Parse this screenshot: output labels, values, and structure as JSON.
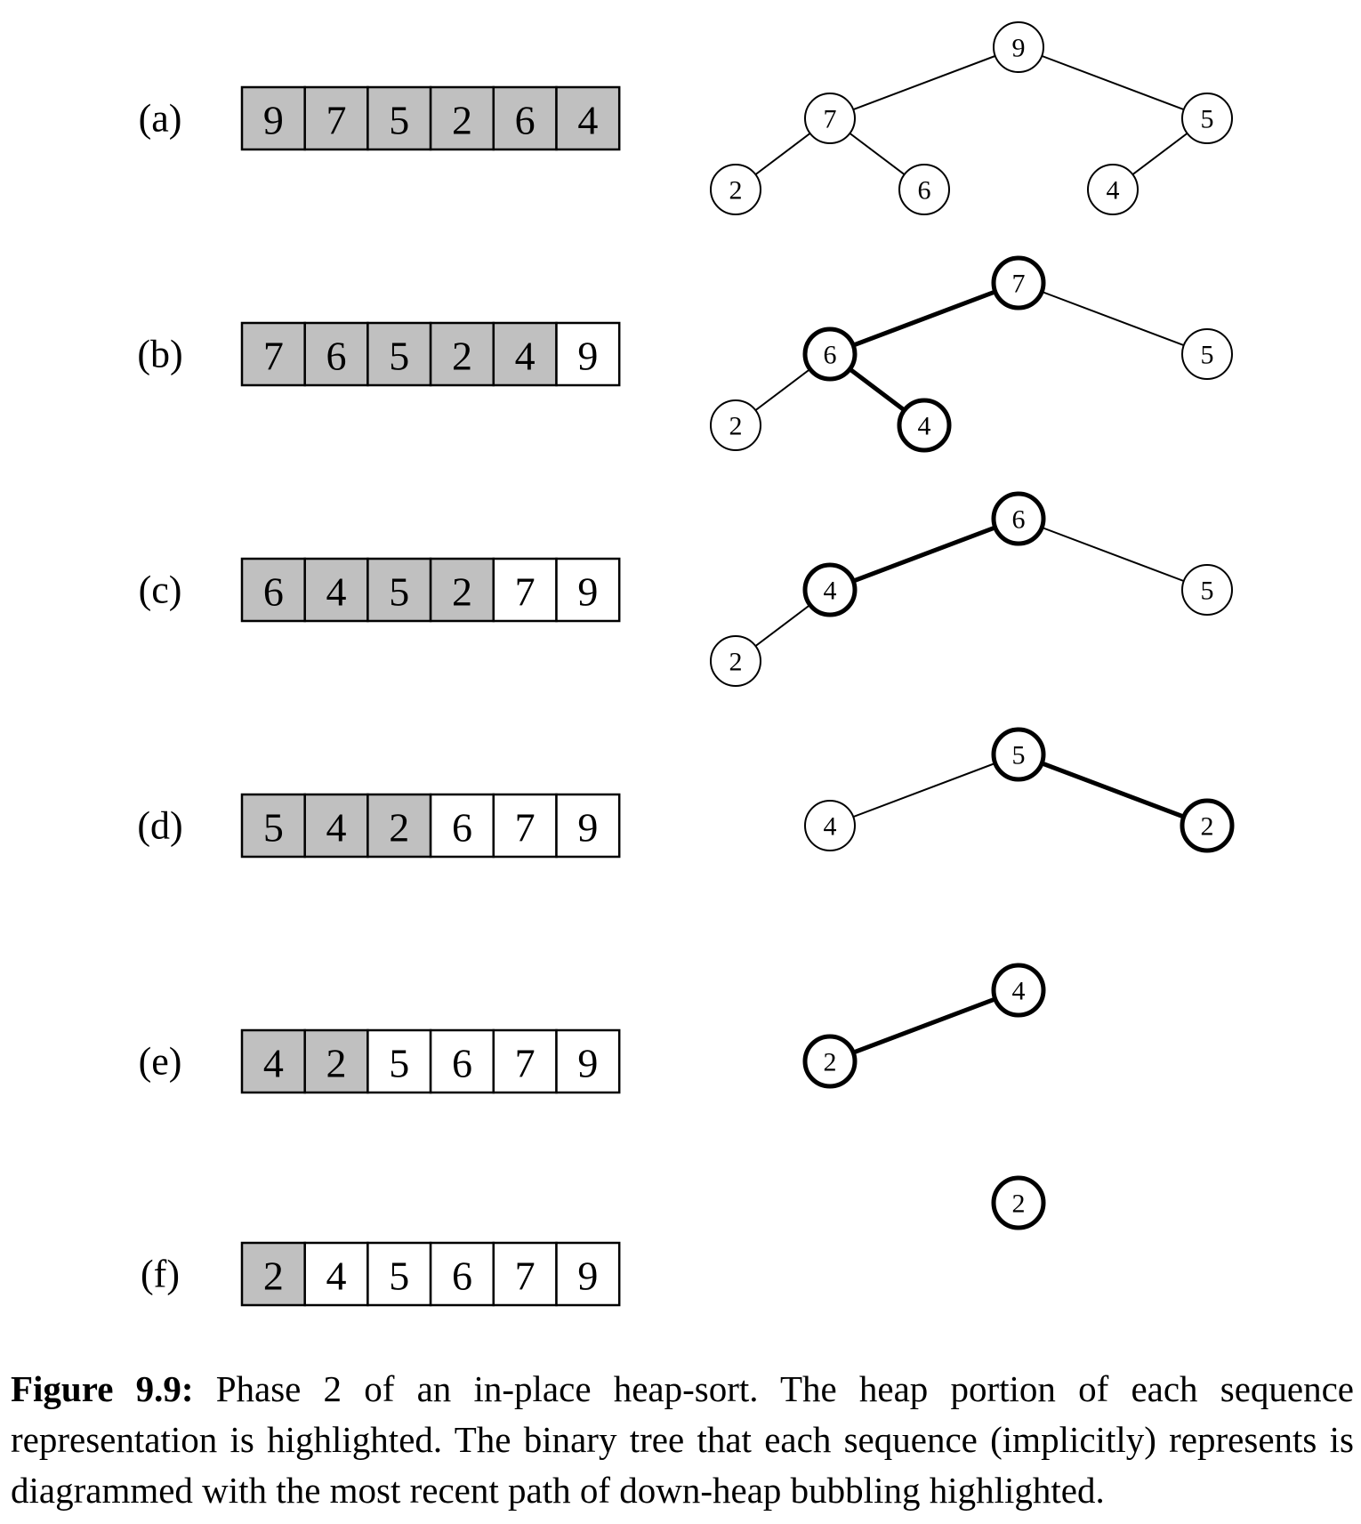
{
  "figure": {
    "rows": [
      {
        "label": "(a)",
        "array": [
          "9",
          "7",
          "5",
          "2",
          "6",
          "4"
        ],
        "heap_size": 6,
        "tree": {
          "nodes": [
            {
              "id": "n0",
              "value": "9",
              "bold": false
            },
            {
              "id": "n1",
              "value": "7",
              "bold": false
            },
            {
              "id": "n2",
              "value": "5",
              "bold": false
            },
            {
              "id": "n3",
              "value": "2",
              "bold": false
            },
            {
              "id": "n4",
              "value": "6",
              "bold": false
            },
            {
              "id": "n5",
              "value": "4",
              "bold": false
            }
          ],
          "edges": [
            {
              "from": "n0",
              "to": "n1",
              "bold": false
            },
            {
              "from": "n0",
              "to": "n2",
              "bold": false
            },
            {
              "from": "n1",
              "to": "n3",
              "bold": false
            },
            {
              "from": "n1",
              "to": "n4",
              "bold": false
            },
            {
              "from": "n2",
              "to": "n5",
              "bold": false
            }
          ]
        }
      },
      {
        "label": "(b)",
        "array": [
          "7",
          "6",
          "5",
          "2",
          "4",
          "9"
        ],
        "heap_size": 5,
        "tree": {
          "nodes": [
            {
              "id": "n0",
              "value": "7",
              "bold": true
            },
            {
              "id": "n1",
              "value": "6",
              "bold": true
            },
            {
              "id": "n2",
              "value": "5",
              "bold": false
            },
            {
              "id": "n3",
              "value": "2",
              "bold": false
            },
            {
              "id": "n4",
              "value": "4",
              "bold": true
            }
          ],
          "edges": [
            {
              "from": "n0",
              "to": "n1",
              "bold": true
            },
            {
              "from": "n0",
              "to": "n2",
              "bold": false
            },
            {
              "from": "n1",
              "to": "n3",
              "bold": false
            },
            {
              "from": "n1",
              "to": "n4",
              "bold": true
            }
          ]
        }
      },
      {
        "label": "(c)",
        "array": [
          "6",
          "4",
          "5",
          "2",
          "7",
          "9"
        ],
        "heap_size": 4,
        "tree": {
          "nodes": [
            {
              "id": "n0",
              "value": "6",
              "bold": true
            },
            {
              "id": "n1",
              "value": "4",
              "bold": true
            },
            {
              "id": "n2",
              "value": "5",
              "bold": false
            },
            {
              "id": "n3",
              "value": "2",
              "bold": false
            }
          ],
          "edges": [
            {
              "from": "n0",
              "to": "n1",
              "bold": true
            },
            {
              "from": "n0",
              "to": "n2",
              "bold": false
            },
            {
              "from": "n1",
              "to": "n3",
              "bold": false
            }
          ]
        }
      },
      {
        "label": "(d)",
        "array": [
          "5",
          "4",
          "2",
          "6",
          "7",
          "9"
        ],
        "heap_size": 3,
        "tree": {
          "nodes": [
            {
              "id": "n0",
              "value": "5",
              "bold": true
            },
            {
              "id": "n1",
              "value": "4",
              "bold": false
            },
            {
              "id": "n2",
              "value": "2",
              "bold": true
            }
          ],
          "edges": [
            {
              "from": "n0",
              "to": "n1",
              "bold": false
            },
            {
              "from": "n0",
              "to": "n2",
              "bold": true
            }
          ]
        }
      },
      {
        "label": "(e)",
        "array": [
          "4",
          "2",
          "5",
          "6",
          "7",
          "9"
        ],
        "heap_size": 2,
        "tree": {
          "nodes": [
            {
              "id": "n0",
              "value": "4",
              "bold": true
            },
            {
              "id": "n1",
              "value": "2",
              "bold": true
            }
          ],
          "edges": [
            {
              "from": "n0",
              "to": "n1",
              "bold": true
            }
          ]
        }
      },
      {
        "label": "(f)",
        "array": [
          "2",
          "4",
          "5",
          "6",
          "7",
          "9"
        ],
        "heap_size": 1,
        "tree": {
          "nodes": [
            {
              "id": "n0",
              "value": "2",
              "bold": true
            }
          ],
          "edges": []
        }
      }
    ],
    "colors": {
      "heap_fill": "#c0c0c0",
      "sorted_fill": "#ffffff",
      "stroke": "#000000"
    }
  },
  "caption": {
    "head": "Figure 9.9:",
    "body": "Phase 2 of an in-place heap-sort. The heap portion of each sequence representation is highlighted. The binary tree that each sequence (implicitly) represents is diagrammed with the most recent path of down-heap bubbling highlighted."
  }
}
